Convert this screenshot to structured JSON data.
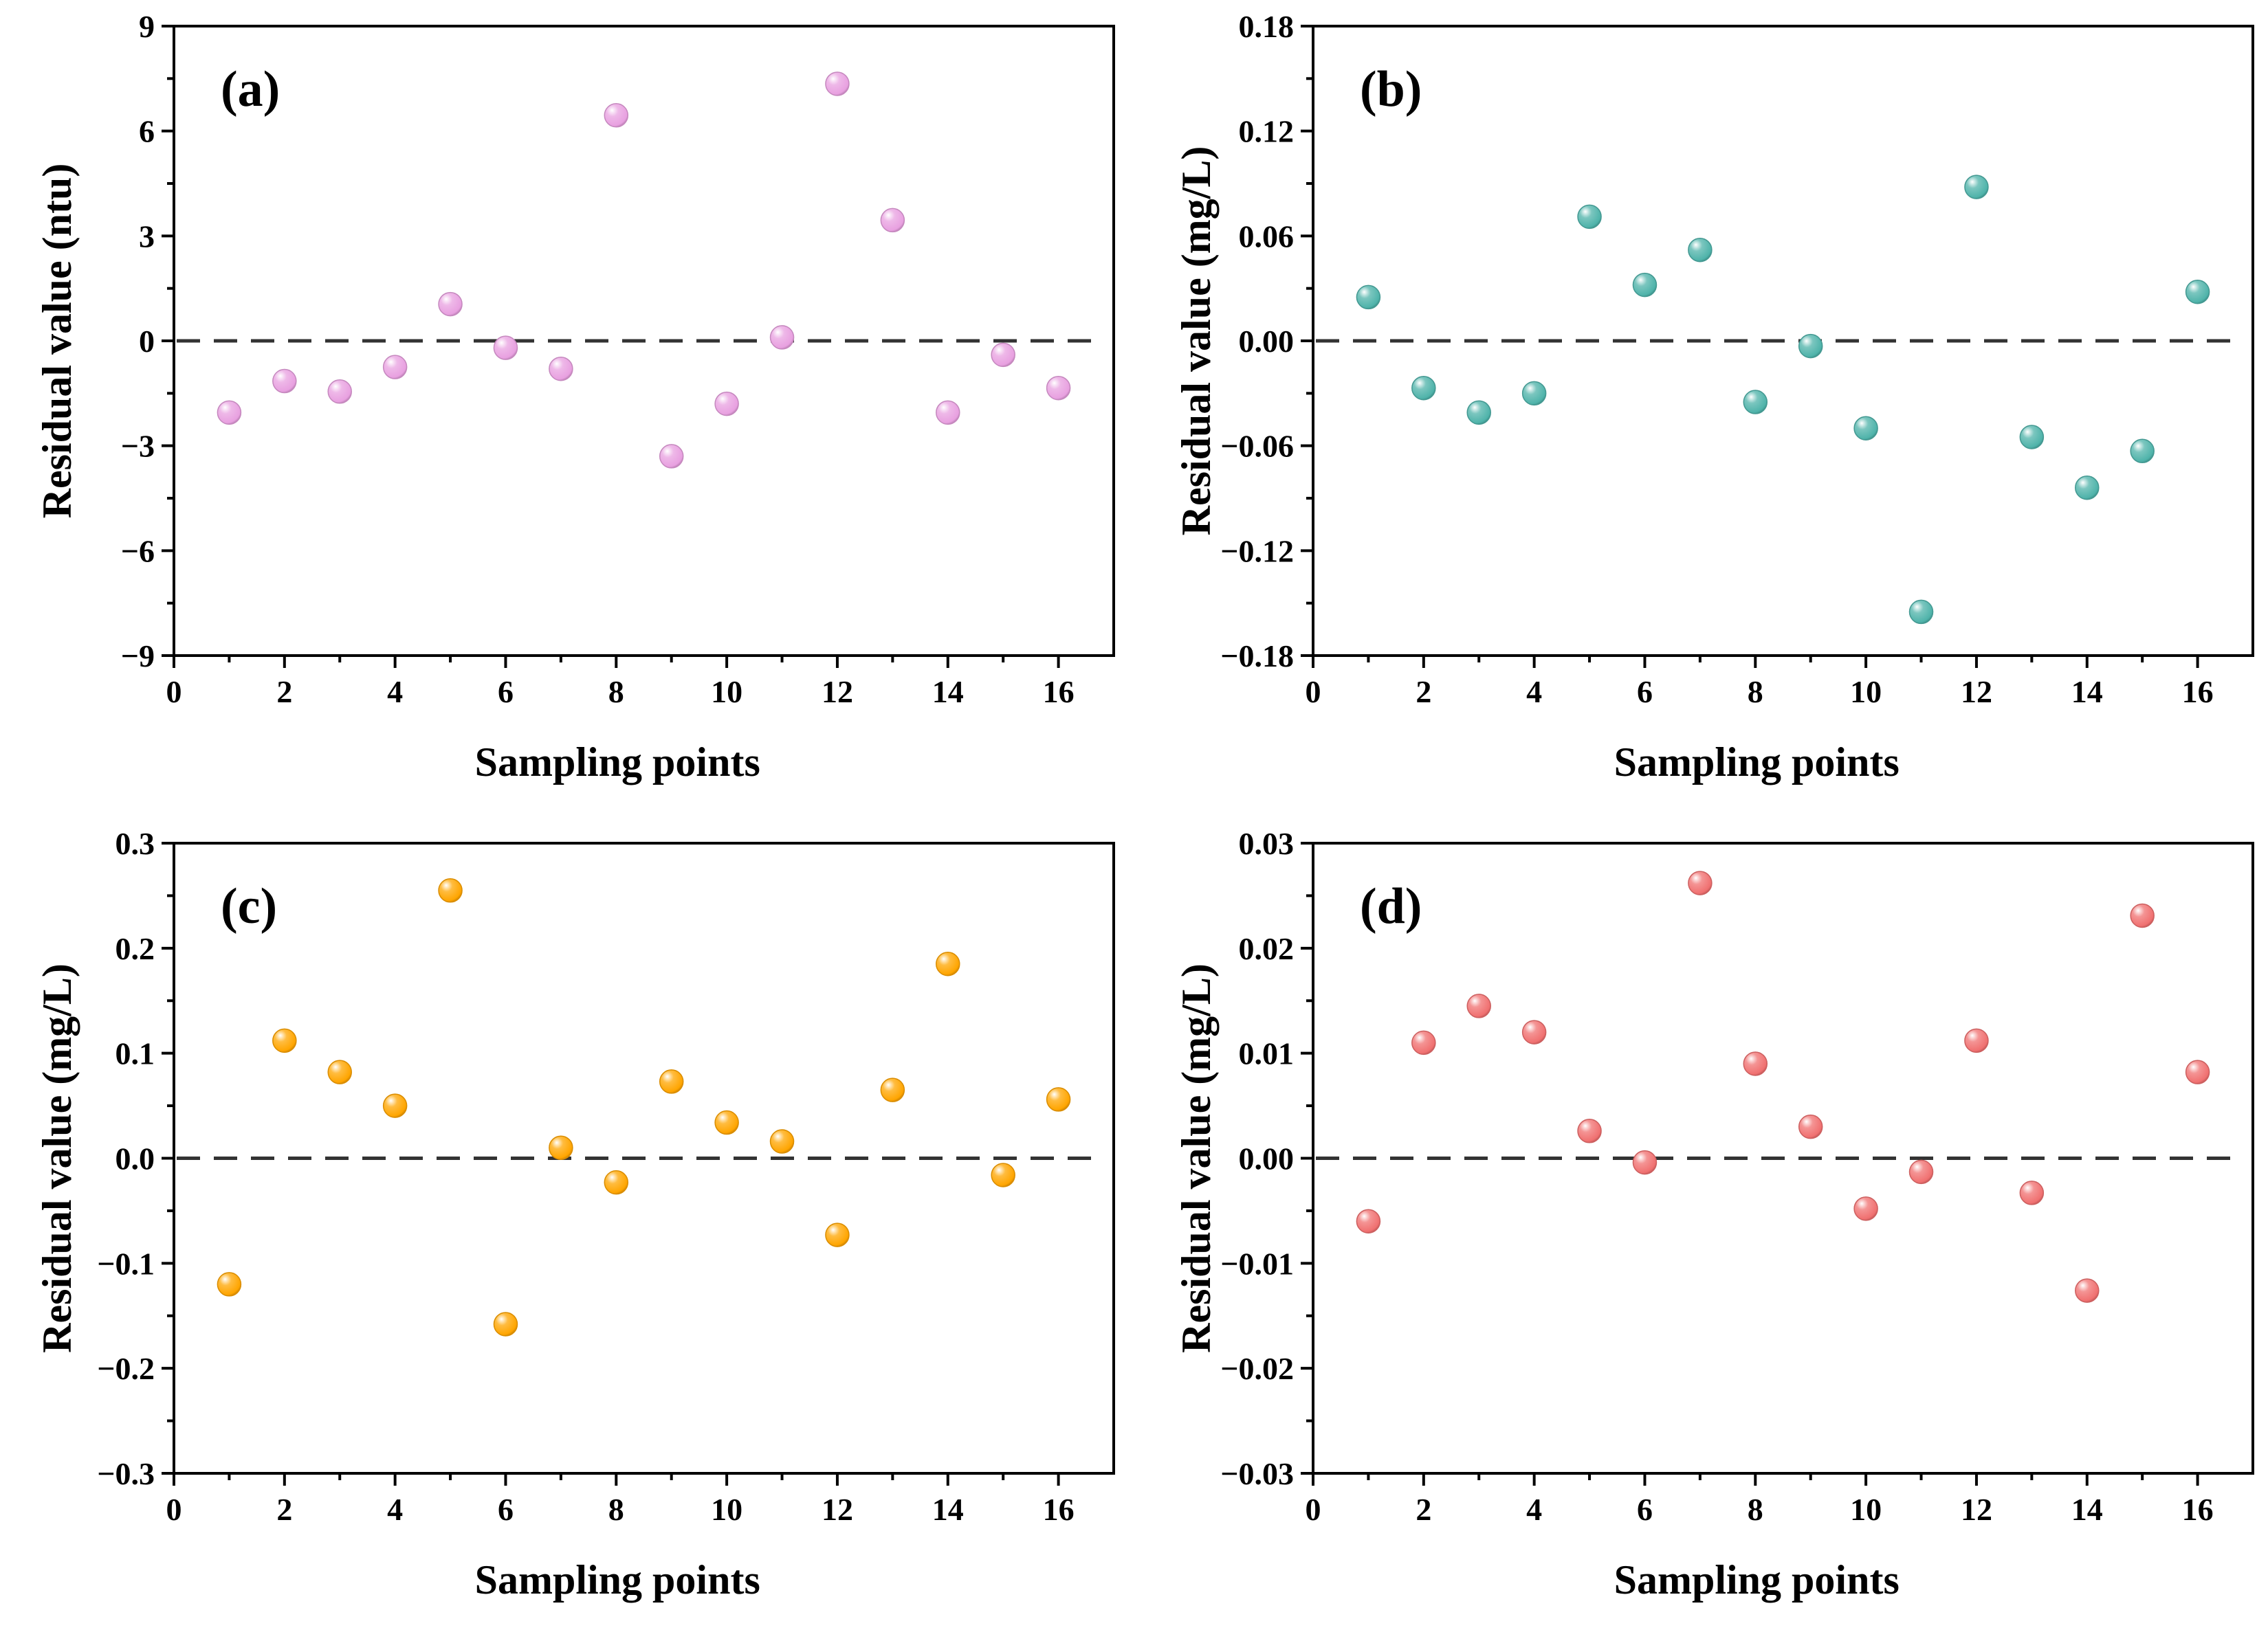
{
  "chart_data": [
    {
      "type": "scatter",
      "panel_label": "(a)",
      "xlabel": "Sampling points",
      "ylabel": "Residual value (ntu)",
      "xlim": [
        0,
        17
      ],
      "ylim": [
        -9,
        9
      ],
      "xticks": [
        0,
        2,
        4,
        6,
        8,
        10,
        12,
        14,
        16
      ],
      "xtick_labels": [
        "0",
        "2",
        "4",
        "6",
        "8",
        "10",
        "12",
        "14",
        "16"
      ],
      "yticks": [
        -9,
        -6,
        -3,
        0,
        3,
        6,
        9
      ],
      "ytick_labels": [
        "−9",
        "−6",
        "−3",
        "0",
        "3",
        "6",
        "9"
      ],
      "reference_line": 0,
      "color": "#E8A0E0",
      "x": [
        1,
        2,
        3,
        4,
        5,
        6,
        7,
        8,
        9,
        10,
        11,
        12,
        13,
        14,
        15,
        16
      ],
      "y": [
        -2.05,
        -1.15,
        -1.45,
        -0.75,
        1.05,
        -0.2,
        -0.8,
        6.45,
        -3.3,
        -1.8,
        0.1,
        7.35,
        3.45,
        -2.05,
        -0.4,
        -1.35
      ]
    },
    {
      "type": "scatter",
      "panel_label": "(b)",
      "xlabel": "Sampling points",
      "ylabel": "Residual value (mg/L)",
      "xlim": [
        0,
        17
      ],
      "ylim": [
        -0.18,
        0.18
      ],
      "xticks": [
        0,
        2,
        4,
        6,
        8,
        10,
        12,
        14,
        16
      ],
      "xtick_labels": [
        "0",
        "2",
        "4",
        "6",
        "8",
        "10",
        "12",
        "14",
        "16"
      ],
      "yticks": [
        -0.18,
        -0.12,
        -0.06,
        0.0,
        0.06,
        0.12,
        0.18
      ],
      "ytick_labels": [
        "−0.18",
        "−0.12",
        "−0.06",
        "0.00",
        "0.06",
        "0.12",
        "0.18"
      ],
      "reference_line": 0,
      "color": "#4FB3AA",
      "x": [
        1,
        2,
        3,
        4,
        5,
        6,
        7,
        8,
        9,
        10,
        11,
        12,
        13,
        14,
        15,
        16
      ],
      "y": [
        0.025,
        -0.027,
        -0.041,
        -0.03,
        0.071,
        0.032,
        0.052,
        -0.035,
        -0.003,
        -0.05,
        -0.155,
        0.088,
        -0.055,
        -0.084,
        -0.063,
        0.028
      ]
    },
    {
      "type": "scatter",
      "panel_label": "(c)",
      "xlabel": "Sampling points",
      "ylabel": "Residual value (mg/L)",
      "xlim": [
        0,
        17
      ],
      "ylim": [
        -0.3,
        0.3
      ],
      "xticks": [
        0,
        2,
        4,
        6,
        8,
        10,
        12,
        14,
        16
      ],
      "xtick_labels": [
        "0",
        "2",
        "4",
        "6",
        "8",
        "10",
        "12",
        "14",
        "16"
      ],
      "yticks": [
        -0.3,
        -0.2,
        -0.1,
        0.0,
        0.1,
        0.2,
        0.3
      ],
      "ytick_labels": [
        "−0.3",
        "−0.2",
        "−0.1",
        "0.0",
        "0.1",
        "0.2",
        "0.3"
      ],
      "reference_line": 0,
      "color": "#FFA500",
      "x": [
        1,
        2,
        3,
        4,
        5,
        6,
        7,
        8,
        9,
        10,
        11,
        12,
        13,
        14,
        15,
        16
      ],
      "y": [
        -0.12,
        0.112,
        0.082,
        0.05,
        0.255,
        -0.158,
        0.01,
        -0.023,
        0.073,
        0.034,
        0.016,
        -0.073,
        0.065,
        0.185,
        -0.016,
        0.056
      ]
    },
    {
      "type": "scatter",
      "panel_label": "(d)",
      "xlabel": "Sampling points",
      "ylabel": "Residual value (mg/L)",
      "xlim": [
        0,
        17
      ],
      "ylim": [
        -0.03,
        0.03
      ],
      "xticks": [
        0,
        2,
        4,
        6,
        8,
        10,
        12,
        14,
        16
      ],
      "xtick_labels": [
        "0",
        "2",
        "4",
        "6",
        "8",
        "10",
        "12",
        "14",
        "16"
      ],
      "yticks": [
        -0.03,
        -0.02,
        -0.01,
        0.0,
        0.01,
        0.02,
        0.03
      ],
      "ytick_labels": [
        "−0.03",
        "−0.02",
        "−0.01",
        "0.00",
        "0.01",
        "0.02",
        "0.03"
      ],
      "reference_line": 0,
      "color": "#F07070",
      "x": [
        1,
        2,
        3,
        4,
        5,
        6,
        7,
        8,
        9,
        10,
        11,
        12,
        13,
        14,
        15,
        16
      ],
      "y": [
        -0.006,
        0.011,
        0.0145,
        0.012,
        0.0026,
        -0.0004,
        0.0262,
        0.009,
        0.003,
        -0.0048,
        -0.0013,
        0.0112,
        -0.0033,
        -0.0126,
        0.0231,
        0.0082
      ]
    }
  ]
}
